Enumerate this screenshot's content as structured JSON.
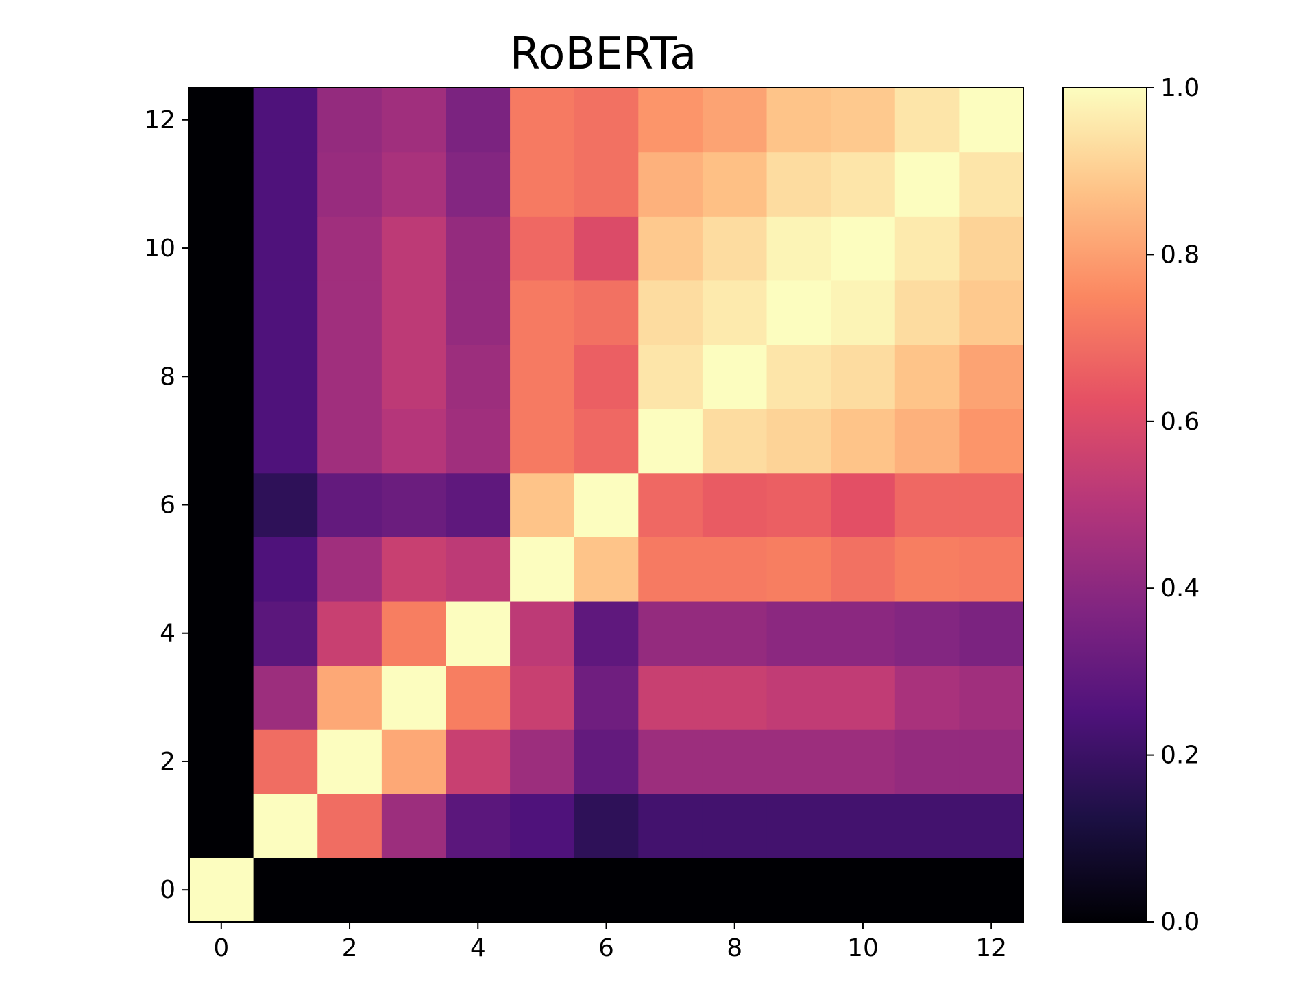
{
  "chart_data": {
    "type": "heatmap",
    "title": "RoBERTa",
    "xlabel": "",
    "ylabel": "",
    "colormap": "magma",
    "x_categories": [
      0,
      1,
      2,
      3,
      4,
      5,
      6,
      7,
      8,
      9,
      10,
      11,
      12
    ],
    "y_categories": [
      0,
      1,
      2,
      3,
      4,
      5,
      6,
      7,
      8,
      9,
      10,
      11,
      12
    ],
    "x_ticks": [
      "0",
      "2",
      "4",
      "6",
      "8",
      "10",
      "12"
    ],
    "y_ticks": [
      "0",
      "2",
      "4",
      "6",
      "8",
      "10",
      "12"
    ],
    "y_origin": "bottom",
    "color_range": [
      0.0,
      1.0
    ],
    "colorbar_ticks": [
      "0.0",
      "0.2",
      "0.4",
      "0.6",
      "0.8",
      "1.0"
    ],
    "grid": false,
    "values": [
      [
        1.0,
        0.0,
        0.0,
        0.0,
        0.0,
        0.0,
        0.0,
        0.0,
        0.0,
        0.0,
        0.0,
        0.0,
        0.0
      ],
      [
        0.0,
        1.0,
        0.69,
        0.44,
        0.28,
        0.25,
        0.17,
        0.22,
        0.22,
        0.22,
        0.22,
        0.22,
        0.22
      ],
      [
        0.0,
        0.69,
        1.0,
        0.82,
        0.55,
        0.44,
        0.3,
        0.44,
        0.44,
        0.44,
        0.44,
        0.42,
        0.42
      ],
      [
        0.0,
        0.44,
        0.82,
        1.0,
        0.73,
        0.55,
        0.33,
        0.55,
        0.55,
        0.53,
        0.53,
        0.47,
        0.45
      ],
      [
        0.0,
        0.28,
        0.55,
        0.73,
        1.0,
        0.52,
        0.29,
        0.42,
        0.42,
        0.4,
        0.4,
        0.38,
        0.36
      ],
      [
        0.0,
        0.25,
        0.45,
        0.55,
        0.52,
        1.0,
        0.88,
        0.72,
        0.72,
        0.73,
        0.7,
        0.73,
        0.72
      ],
      [
        0.0,
        0.17,
        0.3,
        0.32,
        0.29,
        0.88,
        1.0,
        0.68,
        0.65,
        0.66,
        0.62,
        0.68,
        0.68
      ],
      [
        0.0,
        0.25,
        0.45,
        0.5,
        0.45,
        0.72,
        0.68,
        1.0,
        0.93,
        0.91,
        0.88,
        0.84,
        0.78
      ],
      [
        0.0,
        0.25,
        0.45,
        0.52,
        0.44,
        0.72,
        0.66,
        0.95,
        1.0,
        0.95,
        0.93,
        0.88,
        0.81
      ],
      [
        0.0,
        0.25,
        0.45,
        0.52,
        0.42,
        0.72,
        0.7,
        0.93,
        0.96,
        1.0,
        0.98,
        0.93,
        0.89
      ],
      [
        0.0,
        0.25,
        0.45,
        0.52,
        0.42,
        0.68,
        0.6,
        0.89,
        0.93,
        0.98,
        1.0,
        0.96,
        0.91
      ],
      [
        0.0,
        0.25,
        0.43,
        0.47,
        0.38,
        0.72,
        0.7,
        0.84,
        0.87,
        0.93,
        0.95,
        1.0,
        0.95
      ],
      [
        0.0,
        0.25,
        0.42,
        0.45,
        0.36,
        0.72,
        0.7,
        0.78,
        0.81,
        0.88,
        0.89,
        0.95,
        1.0
      ]
    ]
  }
}
